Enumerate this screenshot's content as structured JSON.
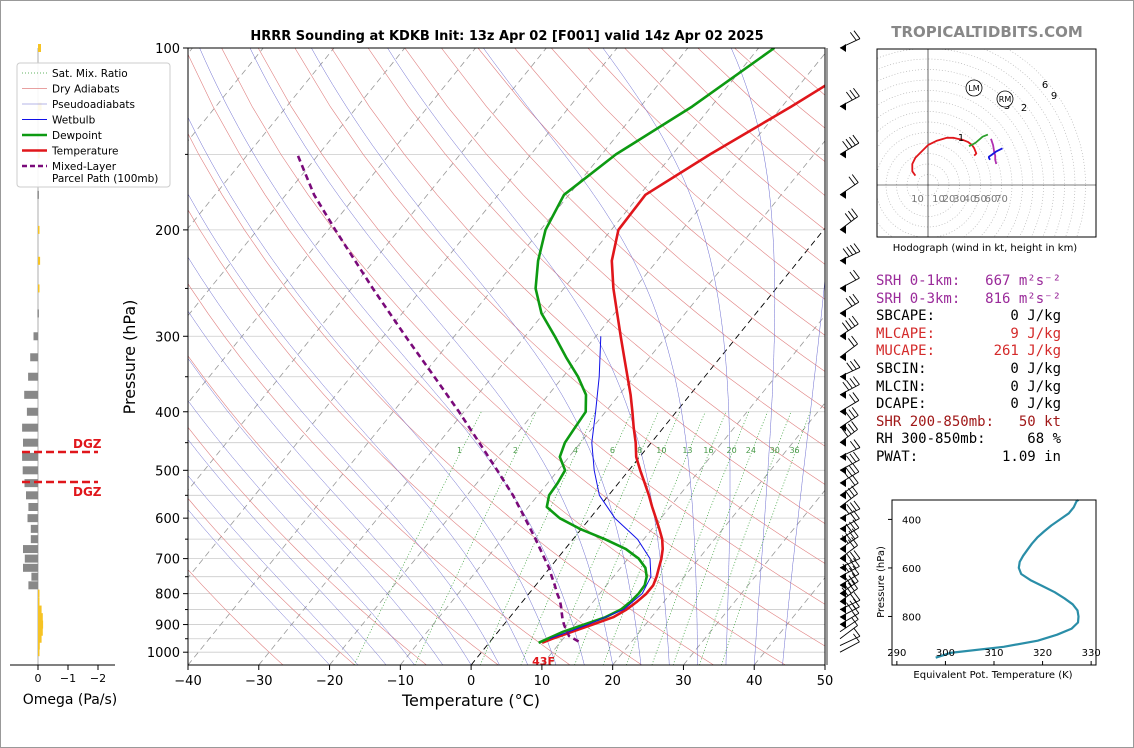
{
  "title": "HRRR Sounding at KDKB Init: 13z Apr 02 [F001] valid 14z Apr 02 2025",
  "watermark": "TROPICALTIDBITS.COM",
  "chart_data": [
    {
      "type": "line",
      "name": "skew-t",
      "xlabel": "Temperature (°C)",
      "ylabel": "Pressure (hPa)",
      "xlim": [
        -40,
        50
      ],
      "ylim": [
        1050,
        100
      ],
      "y_scale": "log",
      "x_ticks": [
        "−40",
        "−30",
        "−20",
        "−10",
        "0",
        "10",
        "20",
        "30",
        "40",
        "50"
      ],
      "y_ticks": [
        "100",
        "200",
        "300",
        "400",
        "500",
        "600",
        "700",
        "800",
        "900",
        "1000"
      ],
      "legend": [
        "Sat. Mix. Ratio",
        "Dry Adiabats",
        "Pseudoadiabats",
        "Wetbulb",
        "Dewpoint",
        "Temperature",
        "Mixed-Layer\nParcel Path (100mb)"
      ],
      "legend_position": "top-left",
      "series": [
        {
          "name": "Temperature",
          "color": "#e0161b",
          "p": [
            965,
            950,
            925,
            900,
            875,
            850,
            825,
            800,
            775,
            750,
            725,
            700,
            675,
            650,
            625,
            600,
            575,
            550,
            525,
            500,
            475,
            450,
            425,
            400,
            375,
            350,
            325,
            300,
            275,
            250,
            225,
            200,
            175,
            150,
            125,
            100
          ],
          "t": [
            7.5,
            8.5,
            10.5,
            12.5,
            14.6,
            15.6,
            16.2,
            16.6,
            16.6,
            16.1,
            15.4,
            14.7,
            13.8,
            12.6,
            11.0,
            9.3,
            7.5,
            5.7,
            3.7,
            1.6,
            -0.5,
            -2.2,
            -4.2,
            -6.2,
            -8.4,
            -10.9,
            -13.6,
            -16.5,
            -19.6,
            -23.0,
            -26.4,
            -29.0,
            -29.2,
            -24.7,
            -18.7,
            -12.0
          ]
        },
        {
          "name": "Dewpoint",
          "color": "#0d9a12",
          "p": [
            965,
            950,
            925,
            900,
            875,
            850,
            825,
            800,
            775,
            750,
            725,
            700,
            675,
            650,
            625,
            600,
            575,
            550,
            525,
            500,
            475,
            450,
            425,
            400,
            375,
            350,
            325,
            300,
            275,
            250,
            225,
            200,
            175,
            150,
            125,
            100
          ],
          "t": [
            7.0,
            7.8,
            9.2,
            11.3,
            13.5,
            14.8,
            15.3,
            15.5,
            15.4,
            14.7,
            13.5,
            11.5,
            8.6,
            4.5,
            -0.2,
            -4.3,
            -7.4,
            -8.4,
            -8.6,
            -9.0,
            -11.3,
            -12.2,
            -12.5,
            -12.8,
            -14.7,
            -17.9,
            -21.8,
            -25.8,
            -30.3,
            -34.0,
            -36.8,
            -39.3,
            -40.7,
            -38.0,
            -32.7,
            -27.8
          ]
        },
        {
          "name": "Wetbulb",
          "color": "#1010e8",
          "p": [
            950,
            900,
            850,
            800,
            750,
            700,
            650,
            600,
            550,
            500,
            450,
            400,
            350,
            300
          ],
          "t": [
            8.1,
            11.9,
            15.2,
            16.0,
            15.3,
            13.1,
            9.1,
            3.5,
            -1.3,
            -4.9,
            -8.4,
            -11.4,
            -14.9,
            -19.3
          ]
        },
        {
          "name": "Mixed-Layer\nParcel Path (100mb)",
          "color": "#7a0a7a",
          "p": [
            960,
            940,
            920,
            900,
            880,
            860,
            840,
            820,
            800,
            775,
            750,
            725,
            700,
            650,
            600,
            550,
            500,
            450,
            400,
            350,
            300,
            250,
            200,
            175,
            150
          ],
          "t": [
            12.5,
            10.5,
            9.5,
            8.5,
            7.6,
            6.8,
            6.0,
            5.1,
            4.0,
            2.7,
            1.3,
            -0.1,
            -1.8,
            -5.3,
            -9.2,
            -13.5,
            -18.6,
            -24.3,
            -30.7,
            -38.2,
            -46.9,
            -57.0,
            -69.0,
            -76.0,
            -83.0
          ]
        }
      ],
      "mixing_ratio_labels": [
        "1",
        "2",
        "4",
        "6",
        "8",
        "10",
        "13",
        "16",
        "20",
        "24",
        "30",
        "36"
      ],
      "surface_label": "43F",
      "dgz_labels": [
        "DGZ",
        "DGZ"
      ]
    },
    {
      "type": "bar",
      "name": "omega",
      "xlabel": "Omega (Pa/s)",
      "x_ticks": [
        "0",
        "−1",
        "−2"
      ],
      "xlim": [
        0.3,
        -2.5
      ],
      "p": [
        1000,
        975,
        950,
        925,
        900,
        875,
        850,
        825,
        800,
        775,
        750,
        725,
        700,
        675,
        650,
        625,
        600,
        575,
        550,
        525,
        500,
        475,
        450,
        425,
        400,
        375,
        350,
        325,
        300,
        275,
        250,
        225,
        200,
        175,
        150,
        125,
        100
      ],
      "values": [
        0.05,
        0.06,
        0.12,
        0.16,
        0.17,
        0.16,
        0.12,
        0.05,
        0.02,
        -0.32,
        -0.22,
        -0.5,
        -0.44,
        -0.5,
        -0.24,
        -0.24,
        -0.35,
        -0.32,
        -0.4,
        -0.45,
        -0.51,
        -0.53,
        -0.5,
        -0.53,
        -0.37,
        -0.46,
        -0.33,
        -0.26,
        -0.15,
        -0.02,
        0.05,
        0.07,
        0.02,
        -0.02,
        0.06,
        0.12,
        0.1
      ]
    },
    {
      "type": "line",
      "name": "hodograph",
      "xlabel": "Hodograph (wind in kt, height in km)",
      "ring_labels": [
        "10",
        "10",
        "20",
        "30",
        "40",
        "50",
        "60",
        "70"
      ],
      "markers": [
        "1",
        "3",
        "2",
        "6",
        "9",
        "LM",
        "RM"
      ],
      "series": [
        {
          "name": "0-3 km",
          "color": "#e0161b",
          "u": [
            -12,
            -15,
            -15,
            -12,
            -8,
            0,
            8,
            18,
            24,
            28,
            33,
            38,
            42,
            44,
            46,
            44
          ],
          "v": [
            9,
            13,
            20,
            26,
            30,
            38,
            42,
            45,
            45,
            44,
            43,
            41,
            38,
            35,
            30,
            28
          ]
        },
        {
          "name": "3-6 km",
          "color": "#2ca02c",
          "u": [
            39,
            45,
            52,
            57
          ],
          "v": [
            37,
            40,
            46,
            48
          ]
        },
        {
          "name": "6-9 km",
          "color": "#b030b0",
          "u": [
            60,
            62,
            63,
            64,
            64,
            65
          ],
          "v": [
            44,
            38,
            32,
            28,
            24,
            20
          ]
        },
        {
          "name": "9+ km",
          "color": "#1515e0",
          "u": [
            59,
            58,
            58,
            61,
            65,
            71
          ],
          "v": [
            24,
            26,
            27,
            29,
            32,
            35
          ]
        }
      ]
    },
    {
      "type": "line",
      "name": "theta-e",
      "xlabel": "Equivalent Pot. Temperature (K)",
      "ylabel": "Pressure (hPa)",
      "xlim": [
        289,
        331
      ],
      "x_ticks": [
        "290",
        "300",
        "310",
        "320",
        "330"
      ],
      "y_ticks": [
        "400",
        "600",
        "800"
      ],
      "series": [
        {
          "name": "Theta-E",
          "color": "#2a8ea8",
          "p": [
            970,
            950,
            925,
            900,
            875,
            850,
            825,
            800,
            775,
            750,
            725,
            700,
            675,
            650,
            625,
            600,
            575,
            550,
            525,
            500,
            475,
            450,
            425,
            400,
            375,
            350,
            325,
            320
          ],
          "v": [
            298,
            301,
            312,
            319,
            323,
            326,
            327.3,
            327.4,
            327.2,
            326.2,
            324.5,
            322.5,
            320,
            317.5,
            315.6,
            315.1,
            315.3,
            316.0,
            316.9,
            317.8,
            318.9,
            320.3,
            321.8,
            323.6,
            325.4,
            326.4,
            327.0,
            327.4
          ]
        }
      ]
    }
  ],
  "indices": [
    {
      "label": "SRH 0-1km:",
      "value": "667",
      "unit": "m²s⁻²",
      "color": "#9a2a9a"
    },
    {
      "label": "SRH 0-3km:",
      "value": "816",
      "unit": "m²s⁻²",
      "color": "#9a2a9a"
    },
    {
      "label": "SBCAPE:",
      "value": "0",
      "unit": "J/kg",
      "color": "#000000"
    },
    {
      "label": "MLCAPE:",
      "value": "9",
      "unit": "J/kg",
      "color": "#d42a2a"
    },
    {
      "label": "MUCAPE:",
      "value": "261",
      "unit": "J/kg",
      "color": "#d42a2a"
    },
    {
      "label": "SBCIN:",
      "value": "0",
      "unit": "J/kg",
      "color": "#000000"
    },
    {
      "label": "MLCIN:",
      "value": "0",
      "unit": "J/kg",
      "color": "#000000"
    },
    {
      "label": "DCAPE:",
      "value": "0",
      "unit": "J/kg",
      "color": "#000000"
    },
    {
      "label": "SHR 200-850mb:",
      "value": "50",
      "unit": "kt",
      "color": "#a01818"
    },
    {
      "label": "RH 300-850mb:",
      "value": "68",
      "unit": "%",
      "color": "#000000"
    },
    {
      "label": "PWAT:",
      "value": "1.09",
      "unit": "in",
      "color": "#000000"
    }
  ]
}
